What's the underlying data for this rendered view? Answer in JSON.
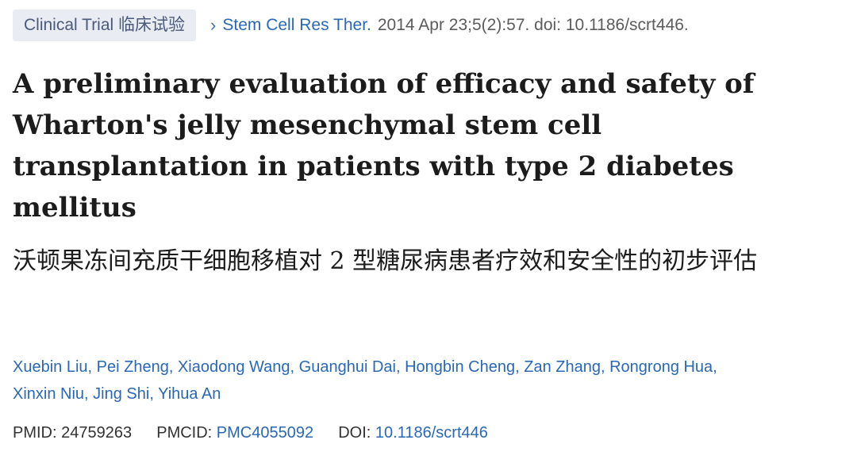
{
  "header": {
    "badge": "Clinical Trial 临床试验",
    "journal": "Stem Cell Res Ther.",
    "citation": "2014 Apr 23;5(2):57. doi: 10.1186/scrt446."
  },
  "title": "A preliminary evaluation of efficacy and safety of Wharton's jelly mesenchymal stem cell transplantation in patients with type 2 diabetes mellitus",
  "subtitle": "沃顿果冻间充质干细胞移植对 2 型糖尿病患者疗效和安全性的初步评估",
  "authors": [
    "Xuebin Liu",
    "Pei Zheng",
    "Xiaodong Wang",
    "Guanghui Dai",
    "Hongbin Cheng",
    "Zan Zhang",
    "Rongrong Hua",
    "Xinxin Niu",
    "Jing Shi",
    "Yihua An"
  ],
  "identifiers": {
    "pmid_label": "PMID:",
    "pmid": "24759263",
    "pmcid_label": "PMCID:",
    "pmcid": "PMC4055092",
    "doi_label": "DOI:",
    "doi": "10.1186/scrt446"
  },
  "colors": {
    "link": "#2a68b6",
    "badge_bg": "#e9ecf3",
    "text": "#1c1c1c"
  },
  "icons": {
    "breadcrumb": "chevron-right-icon"
  }
}
